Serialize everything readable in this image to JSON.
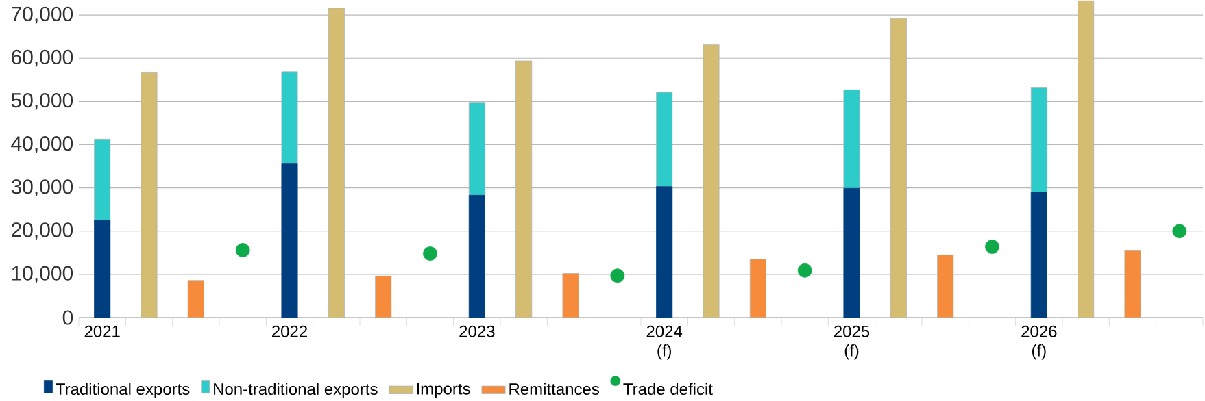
{
  "chart_data": {
    "type": "bar",
    "categories": [
      "2021",
      null,
      null,
      null,
      "2022",
      null,
      null,
      null,
      "2023",
      null,
      null,
      null,
      "2024 (f)",
      null,
      null,
      null,
      "2025 (f)",
      null,
      null,
      null,
      "2026 (f)",
      null,
      null,
      null
    ],
    "series": [
      {
        "name": "Traditional exports",
        "color": "#003f7f",
        "values": [
          22500,
          null,
          null,
          null,
          35700,
          null,
          null,
          null,
          28300,
          null,
          null,
          null,
          30300,
          null,
          null,
          null,
          29900,
          null,
          null,
          null,
          29000,
          null,
          null,
          null
        ]
      },
      {
        "name": "Non-traditional exports",
        "color": "#2ecbcb",
        "values": [
          18800,
          null,
          null,
          null,
          21200,
          null,
          null,
          null,
          21500,
          null,
          null,
          null,
          21800,
          null,
          null,
          null,
          22800,
          null,
          null,
          null,
          24300,
          null,
          null,
          null
        ]
      },
      {
        "name": "Imports",
        "color": "#d4bd71",
        "values": [
          null,
          56800,
          null,
          null,
          null,
          71600,
          null,
          null,
          null,
          59400,
          null,
          null,
          null,
          63100,
          null,
          null,
          null,
          69200,
          null,
          null,
          null,
          73300,
          null,
          null
        ]
      },
      {
        "name": "Remittances",
        "color": "#f58b3b",
        "values": [
          null,
          null,
          8600,
          null,
          null,
          null,
          9600,
          null,
          null,
          null,
          10200,
          null,
          null,
          null,
          13500,
          null,
          null,
          null,
          14500,
          null,
          null,
          null,
          15500,
          null
        ]
      },
      {
        "name": "Trade deficit",
        "color": "#0fab4b",
        "type": "scatter",
        "values": [
          null,
          null,
          null,
          15600,
          null,
          null,
          null,
          14800,
          null,
          null,
          null,
          9700,
          null,
          null,
          null,
          10900,
          null,
          null,
          null,
          16400,
          null,
          null,
          null,
          20000
        ]
      }
    ],
    "stacked": true,
    "ylim": [
      0,
      73500
    ],
    "yticks": [
      {
        "value": 0,
        "label": "0"
      },
      {
        "value": 10000,
        "label": "10,000"
      },
      {
        "value": 20000,
        "label": "20,000"
      },
      {
        "value": 30000,
        "label": "30,000"
      },
      {
        "value": 40000,
        "label": "40,000"
      },
      {
        "value": 50000,
        "label": "50,000"
      },
      {
        "value": 60000,
        "label": "60,000"
      },
      {
        "value": 70000,
        "label": "70,000"
      }
    ],
    "grid": "y",
    "legend": "bottom"
  }
}
